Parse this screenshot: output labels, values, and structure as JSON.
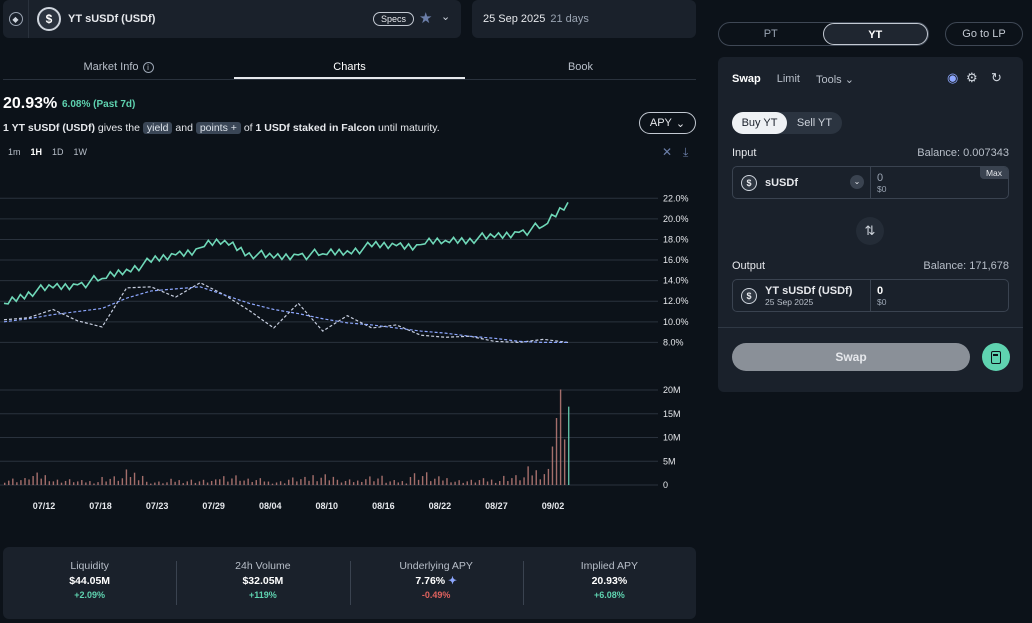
{
  "header": {
    "eth_icon": "ethereum-icon",
    "coin_symbol": "$",
    "title": "YT sUSDf (USDf)",
    "specs_label": "Specs",
    "maturity_date": "25 Sep 2025",
    "days_left": "21 days"
  },
  "tabs": [
    {
      "label": "Market Info"
    },
    {
      "label": "Charts",
      "active": true
    },
    {
      "label": "Book"
    }
  ],
  "summary": {
    "apy": "20.93%",
    "apy_change": "6.08% (Past 7d)",
    "desc_part1": "1 YT sUSDf (USDf)",
    "desc_part2": " gives the ",
    "chip_yield": "yield",
    "desc_part3": " and ",
    "chip_points": "points +",
    "desc_part4": " of ",
    "desc_part5": "1 USDf staked in Falcon",
    "desc_part6": " until maturity.",
    "apy_select": "APY"
  },
  "ranges": [
    "1m",
    "1H",
    "1D",
    "1W"
  ],
  "selected_range": "1H",
  "chart_data": {
    "type": "line",
    "x_labels": [
      "07/12",
      "07/18",
      "07/23",
      "07/29",
      "08/04",
      "08/10",
      "08/16",
      "08/22",
      "08/27",
      "09/02"
    ],
    "y_ticks": [
      "22.0%",
      "20.0%",
      "18.0%",
      "16.0%",
      "14.0%",
      "12.0%",
      "10.0%",
      "8.0%"
    ],
    "ylim": [
      6.0,
      23.0
    ],
    "volume_ticks": [
      "20M",
      "15M",
      "10M",
      "5M",
      "0"
    ],
    "series": [
      {
        "color": "#6fd8b8",
        "style": "solid",
        "values": [
          11.8,
          12.9,
          13.3,
          13.6,
          14.2,
          15.1,
          15.8,
          16.5,
          17.2,
          17.9,
          16.7,
          16.2,
          16.5,
          16.6,
          16.9,
          17.3,
          17.4,
          17.5,
          17.9,
          18.1,
          18.2,
          18.7,
          19.3,
          21.6
        ]
      },
      {
        "color": "#c8cfe0",
        "style": "dashed",
        "values": [
          10.2,
          10.4,
          11.2,
          10.1,
          9.5,
          13.3,
          13.4,
          12.4,
          13.8,
          12.6,
          11.1,
          9.4,
          11.8,
          9.1,
          10.6,
          9.4,
          9.7,
          8.7,
          8.5,
          8.6,
          8.1,
          8.0,
          8.3,
          8.0
        ]
      },
      {
        "color": "#8ea8ff",
        "style": "dashed",
        "values": [
          10.0,
          10.3,
          10.7,
          11.0,
          11.3,
          12.3,
          13.0,
          13.2,
          13.4,
          12.6,
          11.8,
          11.2,
          10.8,
          10.3,
          9.9,
          9.7,
          9.4,
          9.1,
          8.9,
          8.6,
          8.4,
          8.1,
          8.0,
          8.0
        ]
      }
    ],
    "volume": [
      1.2,
      2.0,
      1.0,
      0.8,
      1.5,
      2.5,
      0.6,
      1.0,
      0.9,
      1.8,
      1.1,
      0.7,
      1.3,
      2.0,
      0.9,
      1.6,
      0.8,
      2.2,
      1.4,
      0.9,
      1.1,
      1.7,
      3.0,
      16.5
    ]
  },
  "stats": [
    {
      "label": "Liquidity",
      "value": "$44.05M",
      "change": "+2.09%",
      "dir": "up"
    },
    {
      "label": "24h Volume",
      "value": "$32.05M",
      "change": "+119%",
      "dir": "up"
    },
    {
      "label": "Underlying APY",
      "value": "7.76%",
      "change": "-0.49%",
      "dir": "down"
    },
    {
      "label": "Implied APY",
      "value": "20.93%",
      "change": "+6.08%",
      "dir": "up"
    }
  ],
  "trade": {
    "pt_label": "PT",
    "yt_label": "YT",
    "go_lp": "Go to LP",
    "modes": [
      "Swap",
      "Limit",
      "Tools"
    ],
    "buy_label": "Buy YT",
    "sell_label": "Sell YT",
    "input_label": "Input",
    "input_balance": "Balance: 0.007343",
    "input_token": "sUSDf",
    "input_amount": "0",
    "input_usd": "$0",
    "max_label": "Max",
    "output_label": "Output",
    "output_balance": "Balance: 171,678",
    "output_token": "YT sUSDf (USDf)",
    "output_token_date": "25 Sep 2025",
    "output_amount": "0",
    "output_usd": "$0",
    "swap_label": "Swap"
  }
}
